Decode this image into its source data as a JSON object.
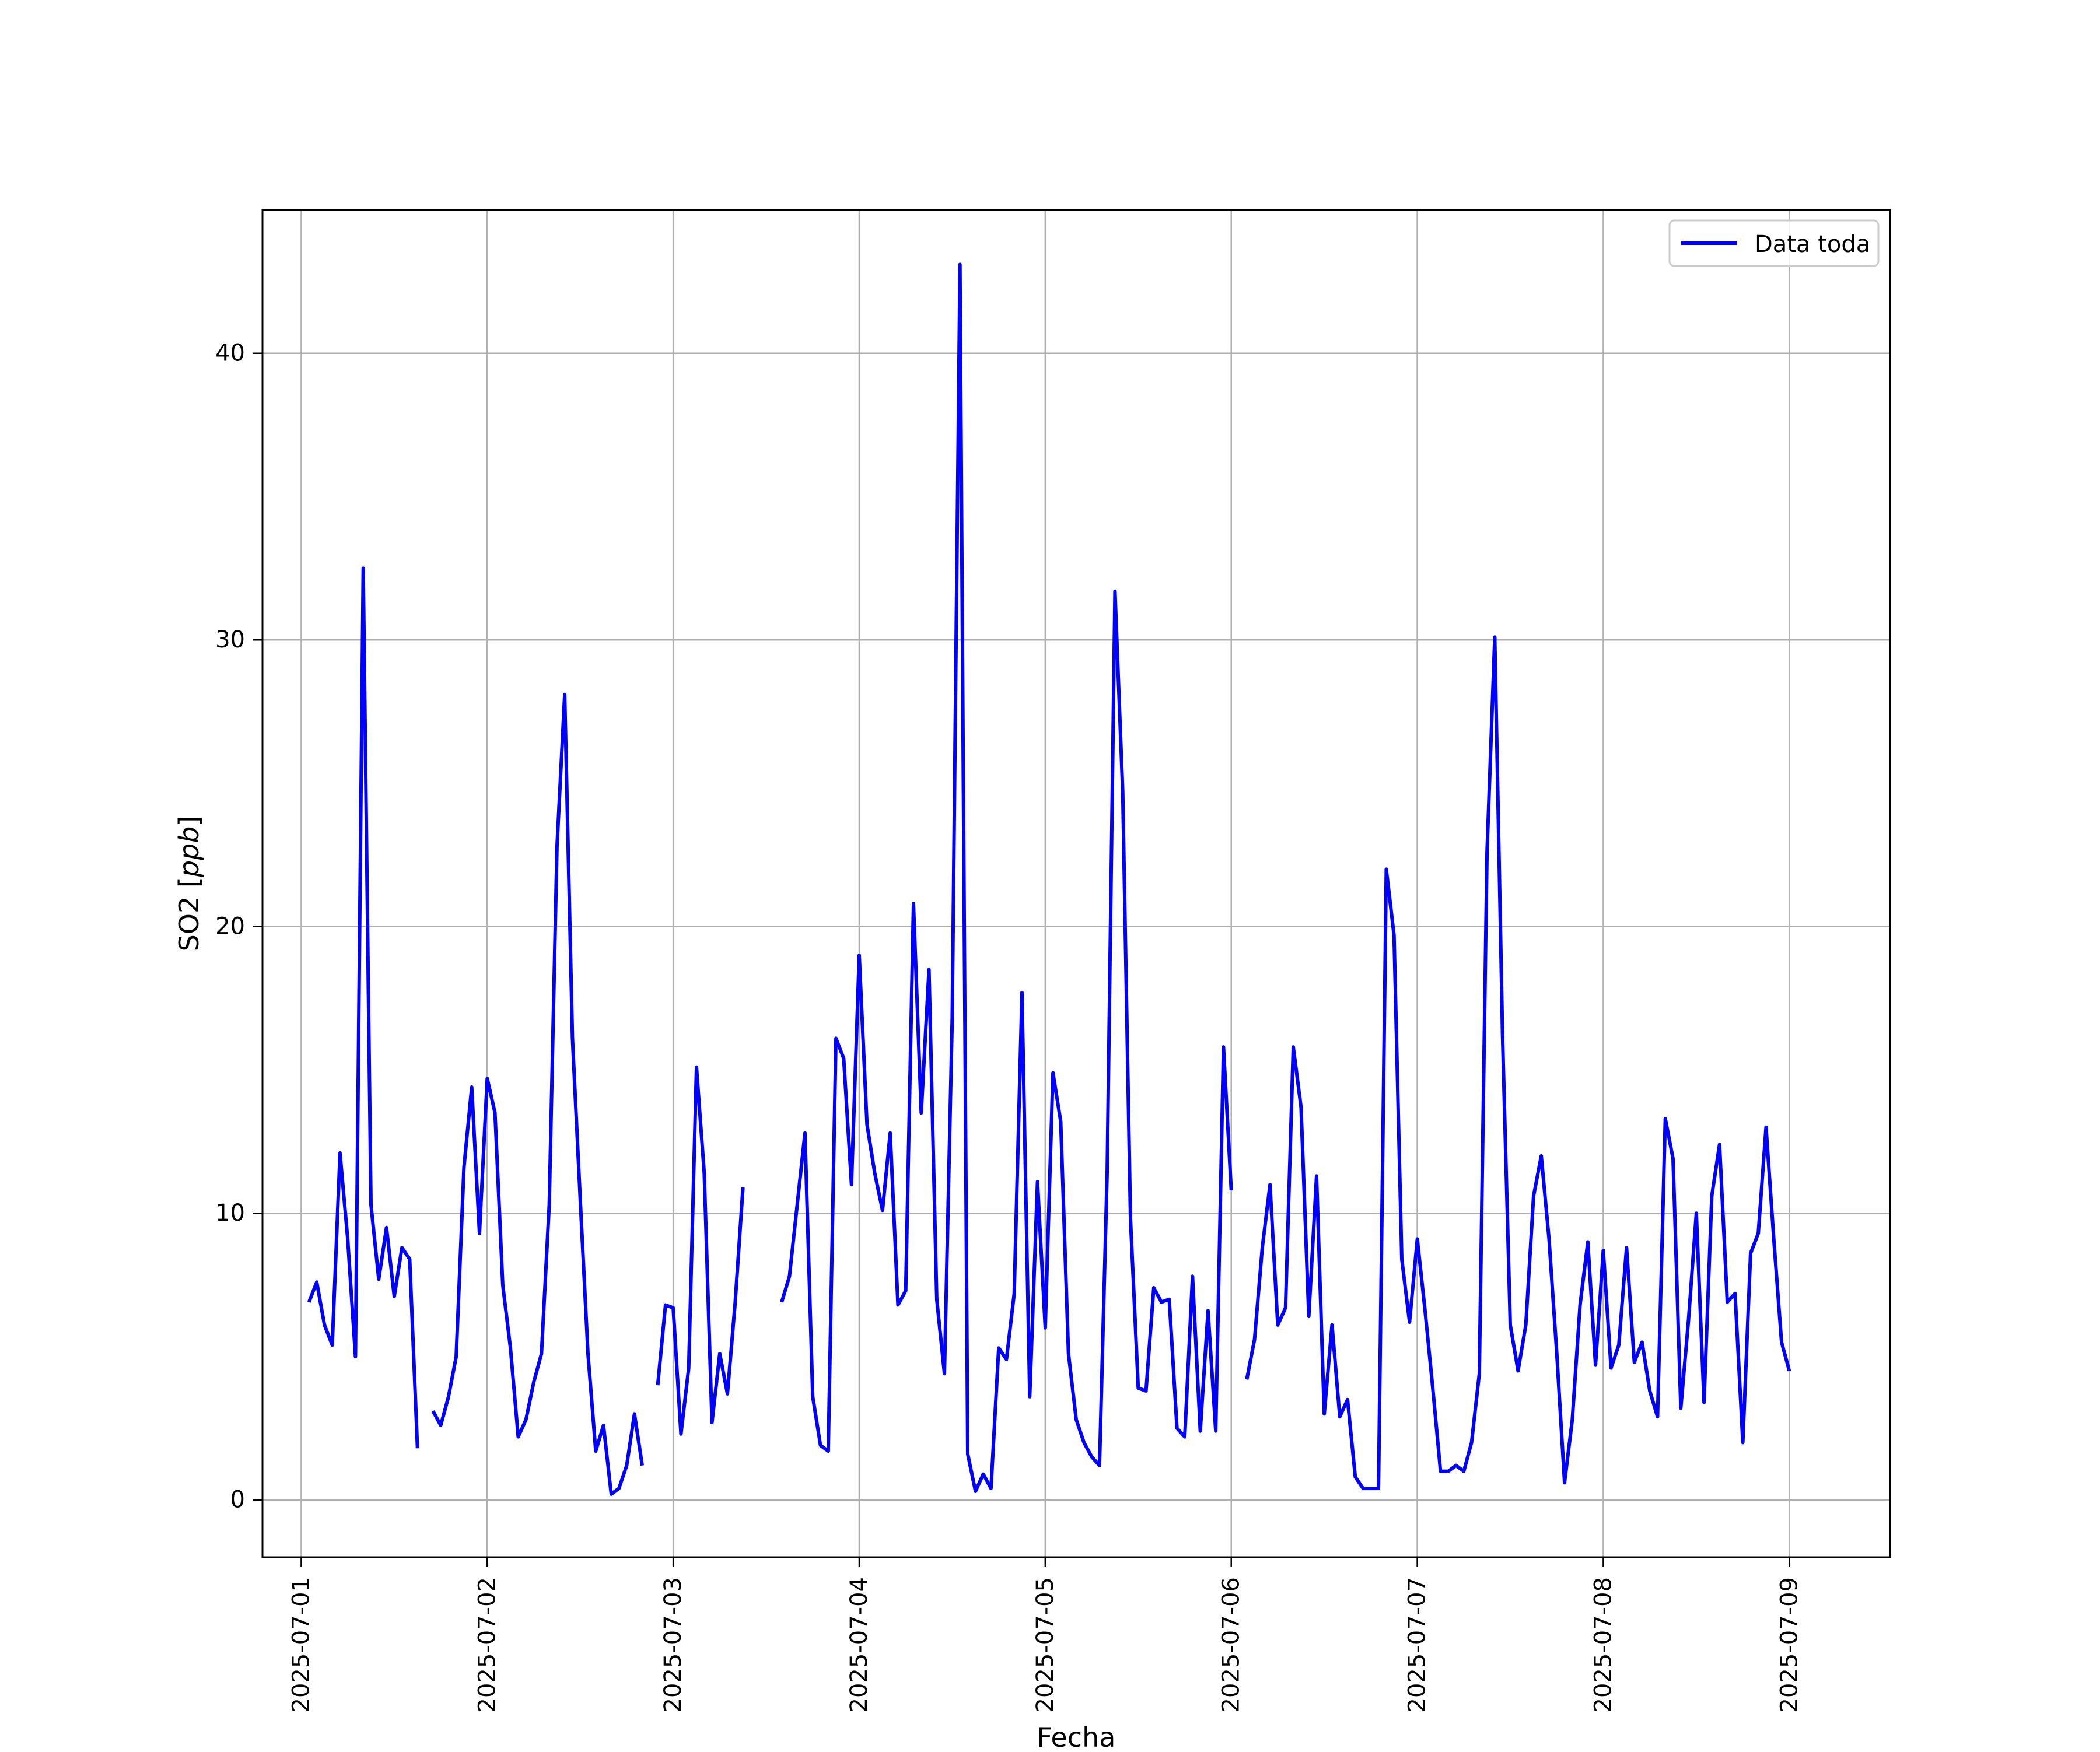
{
  "chart_data": {
    "type": "line",
    "title": "",
    "xlabel": "Fecha",
    "ylabel": "SO2 [ppb]",
    "ylabel_main": "SO2 [",
    "ylabel_unit": "ppb",
    "ylabel_close": "]",
    "xlim": [
      "2025-06-30T19:00",
      "2025-07-09T13:00"
    ],
    "ylim": [
      -2,
      45
    ],
    "grid": true,
    "legend_position": "upper right",
    "line_color": "#0000ff",
    "xticks": [
      "2025-07-01",
      "2025-07-02",
      "2025-07-03",
      "2025-07-04",
      "2025-07-05",
      "2025-07-06",
      "2025-07-07",
      "2025-07-08",
      "2025-07-09"
    ],
    "yticks": [
      "0",
      "10",
      "20",
      "30",
      "40"
    ],
    "series": [
      {
        "name": "Data toda",
        "x": [
          "2025-07-01T01:00",
          "2025-07-01T02:00",
          "2025-07-01T03:00",
          "2025-07-01T04:00",
          "2025-07-01T05:00",
          "2025-07-01T06:00",
          "2025-07-01T07:00",
          "2025-07-01T08:00",
          "2025-07-01T09:00",
          "2025-07-01T10:00",
          "2025-07-01T11:00",
          "2025-07-01T12:00",
          "2025-07-01T13:00",
          "2025-07-01T14:00",
          "2025-07-01T15:00",
          null,
          "2025-07-01T17:00",
          "2025-07-01T18:00",
          "2025-07-01T19:00",
          "2025-07-01T20:00",
          "2025-07-01T21:00",
          "2025-07-01T22:00",
          "2025-07-01T23:00",
          "2025-07-02T00:00",
          "2025-07-02T01:00",
          "2025-07-02T02:00",
          "2025-07-02T03:00",
          "2025-07-02T04:00",
          "2025-07-02T05:00",
          "2025-07-02T06:00",
          "2025-07-02T07:00",
          "2025-07-02T08:00",
          "2025-07-02T09:00",
          "2025-07-02T10:00",
          "2025-07-02T11:00",
          "2025-07-02T12:00",
          "2025-07-02T13:00",
          "2025-07-02T14:00",
          "2025-07-02T15:00",
          "2025-07-02T16:00",
          "2025-07-02T17:00",
          "2025-07-02T18:00",
          "2025-07-02T19:00",
          "2025-07-02T20:00",
          null,
          "2025-07-02T22:00",
          "2025-07-02T23:00",
          "2025-07-03T00:00",
          "2025-07-03T01:00",
          "2025-07-03T02:00",
          "2025-07-03T03:00",
          "2025-07-03T04:00",
          "2025-07-03T05:00",
          "2025-07-03T06:00",
          "2025-07-03T07:00",
          "2025-07-03T08:00",
          "2025-07-03T09:00",
          null,
          "2025-07-03T14:00",
          "2025-07-03T15:00",
          "2025-07-03T16:00",
          "2025-07-03T17:00",
          "2025-07-03T18:00",
          "2025-07-03T19:00",
          "2025-07-03T20:00",
          "2025-07-03T21:00",
          "2025-07-03T22:00",
          "2025-07-03T23:00",
          "2025-07-04T00:00",
          "2025-07-04T01:00",
          "2025-07-04T02:00",
          "2025-07-04T03:00",
          "2025-07-04T04:00",
          "2025-07-04T05:00",
          "2025-07-04T06:00",
          "2025-07-04T07:00",
          "2025-07-04T08:00",
          "2025-07-04T09:00",
          "2025-07-04T10:00",
          "2025-07-04T11:00",
          "2025-07-04T12:00",
          "2025-07-04T13:00",
          "2025-07-04T14:00",
          "2025-07-04T15:00",
          "2025-07-04T16:00",
          "2025-07-04T17:00",
          "2025-07-04T18:00",
          "2025-07-04T19:00",
          "2025-07-04T20:00",
          "2025-07-04T21:00",
          "2025-07-04T22:00",
          "2025-07-04T23:00",
          "2025-07-05T00:00",
          "2025-07-05T01:00",
          "2025-07-05T02:00",
          "2025-07-05T03:00",
          "2025-07-05T04:00",
          "2025-07-05T05:00",
          "2025-07-05T06:00",
          "2025-07-05T07:00",
          "2025-07-05T08:00",
          "2025-07-05T09:00",
          "2025-07-05T10:00",
          "2025-07-05T11:00",
          "2025-07-05T12:00",
          "2025-07-05T13:00",
          "2025-07-05T14:00",
          "2025-07-05T15:00",
          "2025-07-05T16:00",
          "2025-07-05T17:00",
          "2025-07-05T18:00",
          "2025-07-05T19:00",
          "2025-07-05T20:00",
          "2025-07-05T21:00",
          "2025-07-05T22:00",
          "2025-07-05T23:00",
          "2025-07-06T00:00",
          null,
          "2025-07-06T02:00",
          "2025-07-06T03:00",
          "2025-07-06T04:00",
          "2025-07-06T05:00",
          "2025-07-06T06:00",
          "2025-07-06T07:00",
          "2025-07-06T08:00",
          "2025-07-06T09:00",
          "2025-07-06T10:00",
          "2025-07-06T11:00",
          "2025-07-06T12:00",
          "2025-07-06T13:00",
          "2025-07-06T14:00",
          "2025-07-06T15:00",
          "2025-07-06T16:00",
          "2025-07-06T17:00",
          "2025-07-06T18:00",
          "2025-07-06T19:00",
          "2025-07-06T20:00",
          "2025-07-06T21:00",
          "2025-07-06T22:00",
          "2025-07-06T23:00",
          "2025-07-07T00:00",
          "2025-07-07T01:00",
          "2025-07-07T02:00",
          "2025-07-07T03:00",
          "2025-07-07T04:00",
          "2025-07-07T05:00",
          "2025-07-07T06:00",
          "2025-07-07T07:00",
          "2025-07-07T08:00",
          "2025-07-07T09:00",
          "2025-07-07T10:00",
          "2025-07-07T11:00",
          "2025-07-07T12:00",
          "2025-07-07T13:00",
          "2025-07-07T14:00",
          "2025-07-07T15:00",
          "2025-07-07T16:00",
          "2025-07-07T17:00",
          "2025-07-07T18:00",
          "2025-07-07T19:00",
          "2025-07-07T20:00",
          "2025-07-07T21:00",
          "2025-07-07T22:00",
          "2025-07-07T23:00",
          "2025-07-08T00:00",
          "2025-07-08T01:00",
          "2025-07-08T02:00",
          "2025-07-08T03:00",
          "2025-07-08T04:00",
          "2025-07-08T05:00",
          "2025-07-08T06:00",
          "2025-07-08T07:00",
          "2025-07-08T08:00",
          "2025-07-08T09:00",
          "2025-07-08T10:00",
          "2025-07-08T11:00",
          "2025-07-08T12:00",
          "2025-07-08T13:00",
          "2025-07-08T14:00",
          "2025-07-08T15:00",
          "2025-07-08T16:00",
          "2025-07-08T17:00",
          "2025-07-08T18:00",
          "2025-07-08T19:00",
          "2025-07-08T20:00",
          "2025-07-08T21:00",
          "2025-07-08T22:00",
          "2025-07-08T23:00",
          "2025-07-09T00:00"
        ],
        "values": [
          6.9,
          7.6,
          6.1,
          5.4,
          12.1,
          9.1,
          5.0,
          32.5,
          10.3,
          7.7,
          9.5,
          7.1,
          8.8,
          8.4,
          1.8,
          null,
          3.1,
          2.6,
          3.6,
          5.0,
          11.6,
          14.4,
          9.3,
          14.7,
          13.5,
          7.5,
          5.3,
          2.2,
          2.8,
          4.1,
          5.1,
          10.3,
          22.8,
          28.1,
          16.1,
          10.5,
          5.1,
          1.7,
          2.6,
          0.2,
          0.4,
          1.2,
          3.0,
          1.2,
          null,
          4.0,
          6.8,
          6.7,
          2.3,
          4.6,
          15.1,
          11.4,
          2.7,
          5.1,
          3.7,
          6.9,
          10.9,
          null,
          6.9,
          7.8,
          10.3,
          12.8,
          3.6,
          1.9,
          1.7,
          16.1,
          15.4,
          11.0,
          19.0,
          13.1,
          11.4,
          10.1,
          12.8,
          6.8,
          7.3,
          20.8,
          13.5,
          18.5,
          7.0,
          4.4,
          16.8,
          43.1,
          1.6,
          0.3,
          0.9,
          0.4,
          5.3,
          4.9,
          7.2,
          17.7,
          3.6,
          11.1,
          6.0,
          14.9,
          13.2,
          5.1,
          2.8,
          2.0,
          1.5,
          1.2,
          11.5,
          31.7,
          24.7,
          9.8,
          3.9,
          3.8,
          7.4,
          6.9,
          7.0,
          2.5,
          2.2,
          7.8,
          2.4,
          6.6,
          2.4,
          15.8,
          10.8,
          null,
          4.2,
          5.6,
          8.8,
          11.0,
          6.1,
          6.7,
          15.8,
          13.7,
          6.4,
          11.3,
          3.0,
          6.1,
          2.9,
          3.5,
          0.8,
          0.4,
          0.4,
          0.4,
          22.0,
          19.7,
          8.4,
          6.2,
          9.1,
          6.6,
          3.9,
          1.0,
          1.0,
          1.2,
          1.0,
          2.0,
          4.4,
          22.6,
          30.1,
          16.2,
          6.1,
          4.5,
          6.1,
          10.6,
          12.0,
          9.1,
          5.1,
          0.6,
          2.8,
          6.8,
          9.0,
          4.7,
          8.7,
          4.6,
          5.4,
          8.8,
          4.8,
          5.5,
          3.8,
          2.9,
          13.3,
          11.9,
          3.2,
          6.3,
          10.0,
          3.4,
          10.6,
          12.4,
          6.9,
          7.2,
          2.0,
          8.6,
          9.3,
          13.0,
          9.1,
          5.5,
          4.5
        ]
      }
    ]
  }
}
